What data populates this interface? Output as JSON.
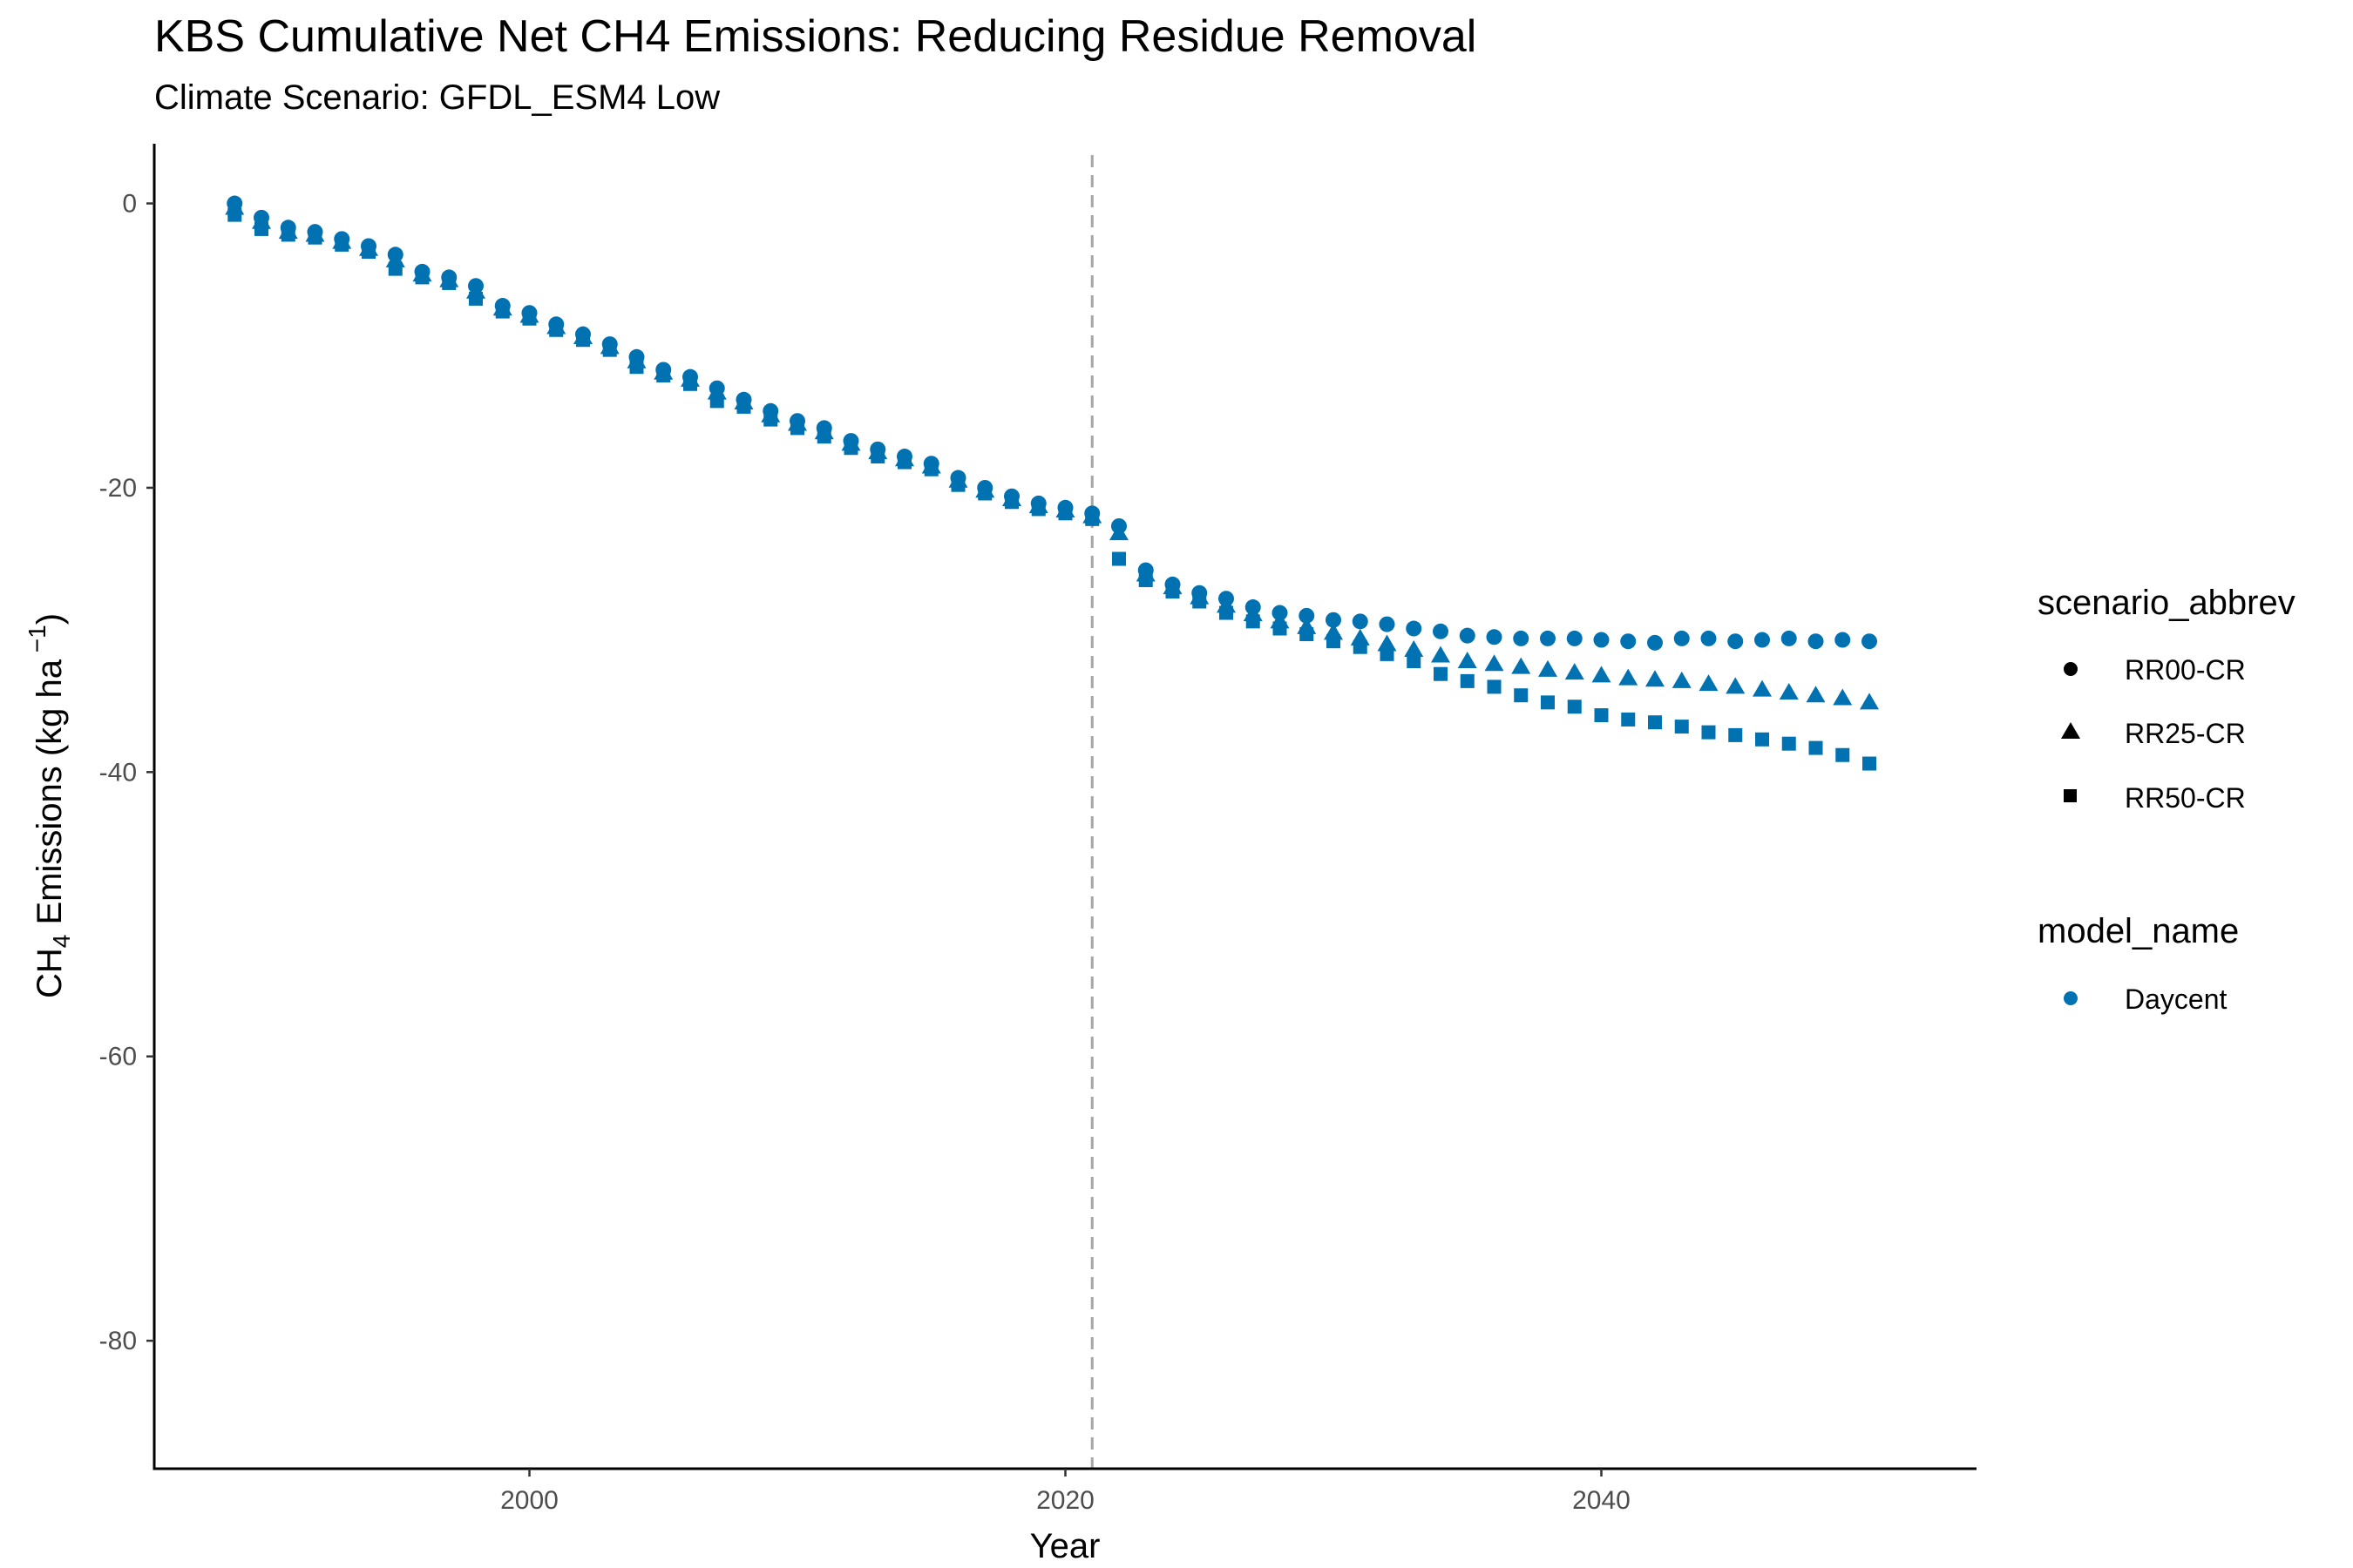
{
  "chart_data": {
    "type": "scatter",
    "title": "KBS  Cumulative Net CH4 Emissions: Reducing Residue Removal",
    "subtitle": "Climate Scenario: GFDL_ESM4 Low",
    "xlabel": "Year",
    "ylabel_main": "CH",
    "ylabel_sub": "4",
    "ylabel_mid": " Emissions (kg ha",
    "ylabel_sup": " −1",
    "ylabel_end": ")",
    "xlim": [
      1986,
      2054
    ],
    "ylim": [
      -89,
      4.2
    ],
    "x_ticks": [
      2000,
      2020,
      2040
    ],
    "y_ticks": [
      0,
      -20,
      -40,
      -60,
      -80
    ],
    "grid": false,
    "vline": {
      "x": 2021,
      "color": "#a6a6a6",
      "style": "dashed"
    },
    "color": "#0072B2",
    "legend_placement": "right",
    "legend": {
      "shape_title": "scenario_abbrev",
      "shape_items": [
        {
          "label": "RR00-CR",
          "shape": "circle"
        },
        {
          "label": "RR25-CR",
          "shape": "triangle"
        },
        {
          "label": "RR50-CR",
          "shape": "square"
        }
      ],
      "color_title": "model_name",
      "color_items": [
        {
          "label": "Daycent",
          "color": "#0072B2"
        }
      ]
    },
    "model": "Daycent",
    "x": [
      1989,
      1990,
      1991,
      1992,
      1993,
      1994,
      1995,
      1996,
      1997,
      1998,
      1999,
      2000,
      2001,
      2002,
      2003,
      2004,
      2005,
      2006,
      2007,
      2008,
      2009,
      2010,
      2011,
      2012,
      2013,
      2014,
      2015,
      2016,
      2017,
      2018,
      2019,
      2020,
      2021,
      2022,
      2023,
      2024,
      2025,
      2026,
      2027,
      2028,
      2029,
      2030,
      2031,
      2032,
      2033,
      2034,
      2035,
      2036,
      2037,
      2038,
      2039,
      2040,
      2041,
      2042,
      2043,
      2044,
      2045,
      2046,
      2047,
      2048,
      2049,
      2050
    ],
    "series": [
      {
        "name": "RR00-CR",
        "shape": "circle",
        "values": [
          0.0,
          -1.0,
          -1.7,
          -2.0,
          -2.5,
          -3.0,
          -3.6,
          -4.8,
          -5.2,
          -5.8,
          -7.2,
          -7.7,
          -8.5,
          -9.2,
          -9.9,
          -10.8,
          -11.7,
          -12.2,
          -13.0,
          -13.8,
          -14.6,
          -15.3,
          -15.8,
          -16.7,
          -17.3,
          -17.8,
          -18.3,
          -19.3,
          -20.0,
          -20.6,
          -21.1,
          -21.4,
          -21.8,
          -22.7,
          -25.8,
          -26.8,
          -27.4,
          -27.8,
          -28.4,
          -28.8,
          -29.0,
          -29.3,
          -29.4,
          -29.6,
          -29.9,
          -30.1,
          -30.4,
          -30.5,
          -30.6,
          -30.6,
          -30.6,
          -30.7,
          -30.8,
          -30.9,
          -30.6,
          -30.6,
          -30.8,
          -30.7,
          -30.6,
          -30.8,
          -30.7,
          -30.8
        ]
      },
      {
        "name": "RR25-CR",
        "shape": "triangle",
        "values": [
          -0.3,
          -1.3,
          -2.0,
          -2.2,
          -2.7,
          -3.2,
          -4.0,
          -5.0,
          -5.4,
          -6.2,
          -7.4,
          -7.9,
          -8.7,
          -9.4,
          -10.1,
          -11.1,
          -11.9,
          -12.4,
          -13.3,
          -14.0,
          -14.9,
          -15.5,
          -16.1,
          -16.9,
          -17.5,
          -18.0,
          -18.5,
          -19.5,
          -20.2,
          -20.8,
          -21.3,
          -21.6,
          -22.0,
          -23.2,
          -26.1,
          -27.0,
          -27.7,
          -28.3,
          -28.9,
          -29.4,
          -29.8,
          -30.2,
          -30.6,
          -31.0,
          -31.4,
          -31.8,
          -32.2,
          -32.4,
          -32.6,
          -32.8,
          -33.0,
          -33.2,
          -33.4,
          -33.5,
          -33.6,
          -33.8,
          -34.0,
          -34.2,
          -34.4,
          -34.6,
          -34.8,
          -35.1
        ]
      },
      {
        "name": "RR50-CR",
        "shape": "square",
        "values": [
          -0.8,
          -1.8,
          -2.2,
          -2.4,
          -2.9,
          -3.4,
          -4.6,
          -5.2,
          -5.6,
          -6.7,
          -7.6,
          -8.1,
          -8.9,
          -9.6,
          -10.3,
          -11.5,
          -12.1,
          -12.7,
          -13.9,
          -14.3,
          -15.2,
          -15.8,
          -16.4,
          -17.2,
          -17.8,
          -18.2,
          -18.7,
          -19.8,
          -20.4,
          -21.0,
          -21.5,
          -21.8,
          -22.2,
          -25.0,
          -26.5,
          -27.3,
          -28.0,
          -28.8,
          -29.4,
          -29.9,
          -30.3,
          -30.8,
          -31.2,
          -31.7,
          -32.2,
          -33.1,
          -33.6,
          -34.0,
          -34.6,
          -35.1,
          -35.4,
          -36.0,
          -36.3,
          -36.5,
          -36.8,
          -37.2,
          -37.4,
          -37.7,
          -38.0,
          -38.3,
          -38.8,
          -39.4
        ]
      }
    ]
  }
}
